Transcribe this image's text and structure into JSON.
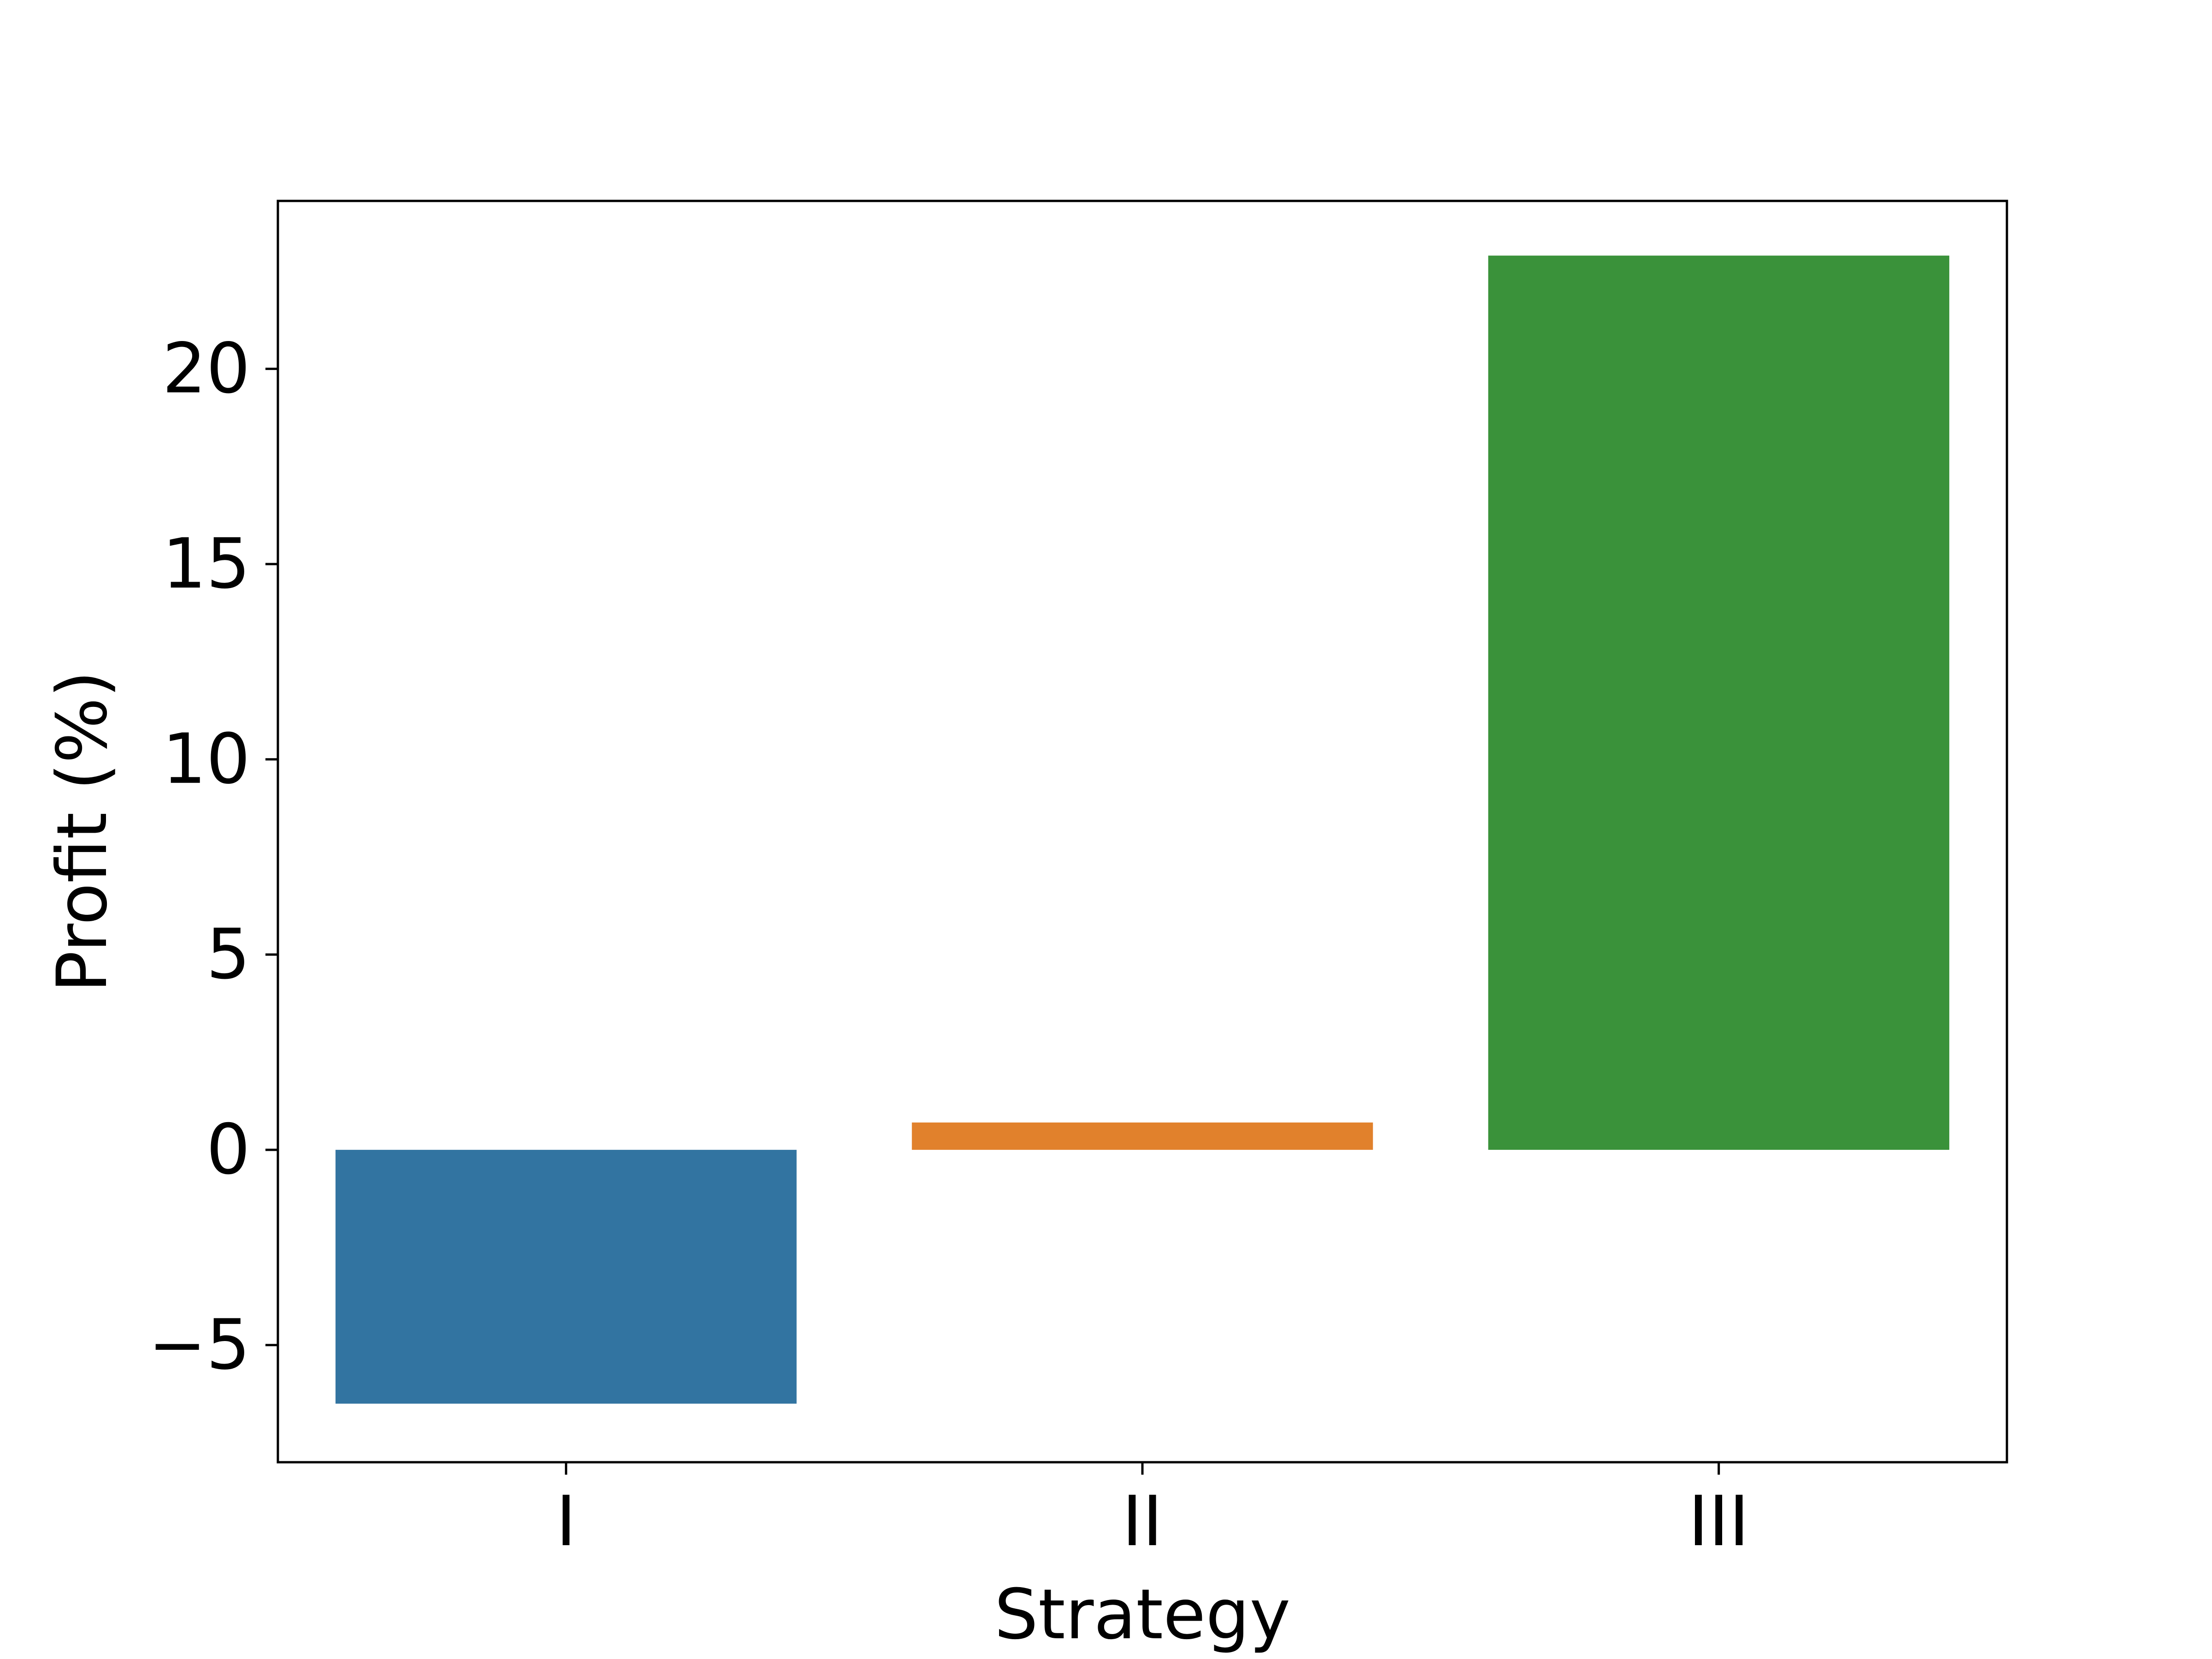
{
  "chart_data": {
    "type": "bar",
    "title": "",
    "xlabel": "Strategy",
    "ylabel": "Profit (%)",
    "categories": [
      "I",
      "II",
      "III"
    ],
    "values": [
      -6.5,
      0.7,
      22.9
    ],
    "colors": [
      "#3274a1",
      "#e1812c",
      "#3a923a"
    ],
    "ylim": [
      -8,
      24.3
    ],
    "yticks": [
      -5,
      0,
      5,
      10,
      15,
      20
    ],
    "ytick_labels": [
      "−5",
      "0",
      "5",
      "10",
      "15",
      "20"
    ],
    "grid": false,
    "legend": "none"
  }
}
